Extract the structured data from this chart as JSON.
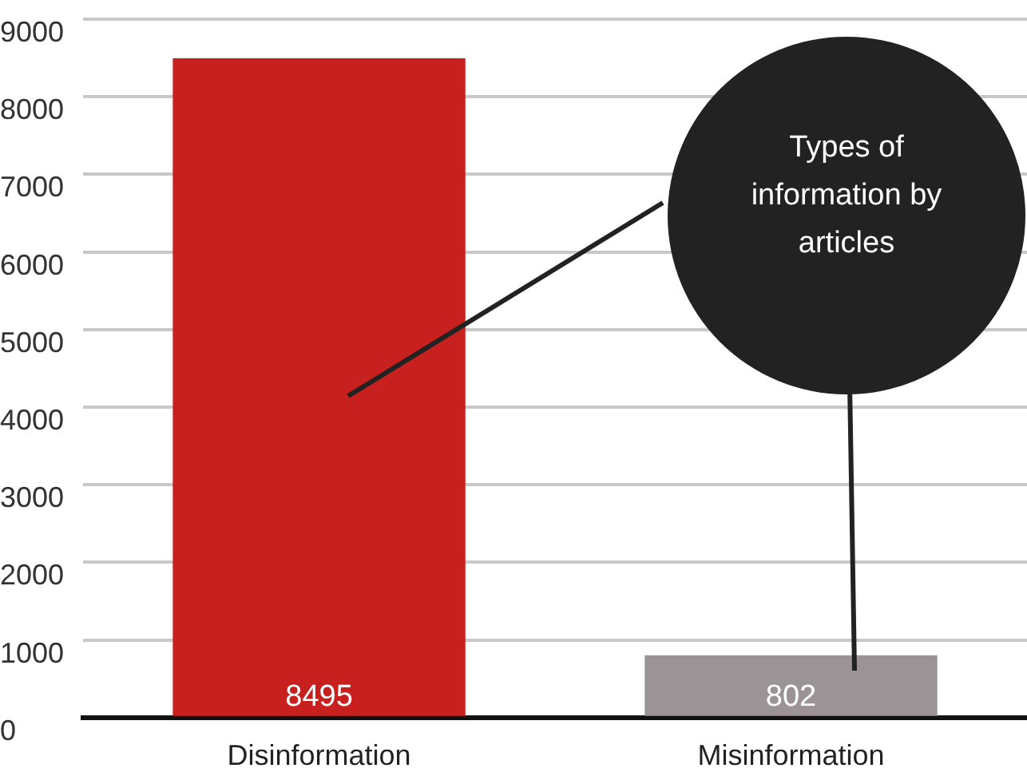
{
  "chart_data": {
    "type": "bar",
    "title": "Types of information by articles",
    "categories": [
      "Disinformation",
      "Misinformation"
    ],
    "values": [
      8495,
      802
    ],
    "colors": [
      "#c8201e",
      "#9b9396"
    ],
    "ylim": [
      0,
      9000
    ],
    "yticks": [
      0,
      1000,
      2000,
      3000,
      4000,
      5000,
      6000,
      7000,
      8000,
      9000
    ],
    "grid": "y",
    "legend": false,
    "data_labels": true
  }
}
